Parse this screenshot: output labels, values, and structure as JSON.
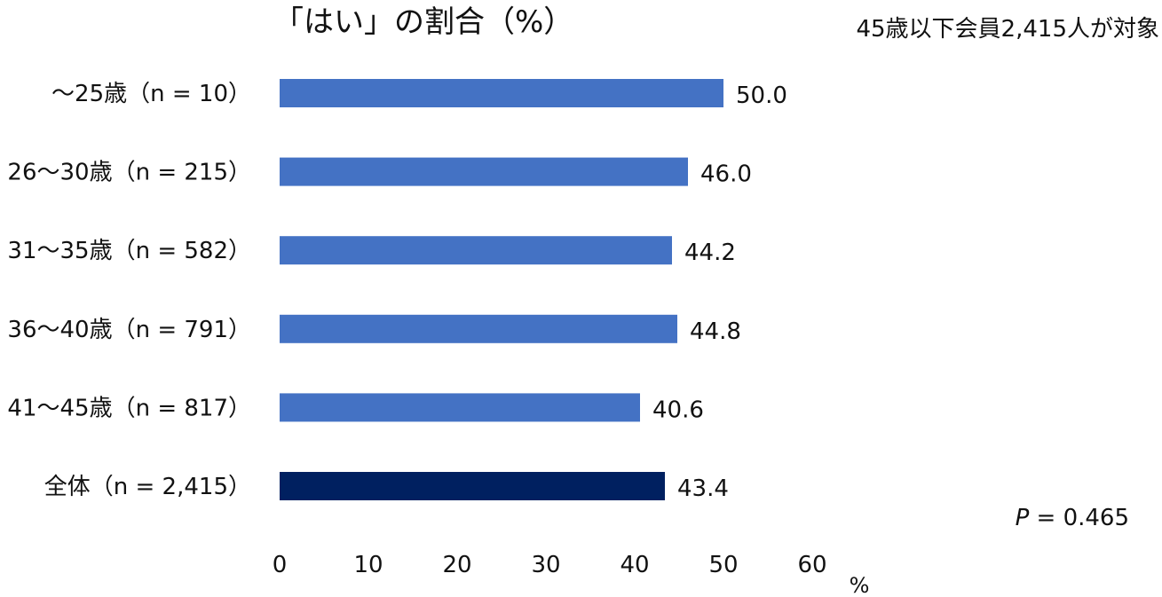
{
  "chart_data": {
    "type": "bar",
    "orientation": "horizontal",
    "title": "「はい」の割合（%）",
    "subtitle": "45歳以下会員2,415人が対象",
    "categories": [
      "～25歳（n = 10）",
      "26～30歳（n = 215）",
      "31～35歳（n = 582）",
      "36～40歳（n = 791）",
      "41～45歳（n = 817）",
      "全体（n = 2,415）"
    ],
    "values": [
      50.0,
      46.0,
      44.2,
      44.8,
      40.6,
      43.4
    ],
    "value_labels": [
      "50.0",
      "46.0",
      "44.2",
      "44.8",
      "40.6",
      "43.4"
    ],
    "xlim": [
      0,
      60
    ],
    "xticks": [
      "0",
      "10",
      "20",
      "30",
      "40",
      "50",
      "60"
    ],
    "xunit": "%",
    "annotation_p_symbol": "P",
    "annotation_p_rest": " = 0.465",
    "colors": {
      "group_bar": "#4472c4",
      "total_bar": "#002060"
    },
    "grid": false,
    "legend": "none"
  }
}
